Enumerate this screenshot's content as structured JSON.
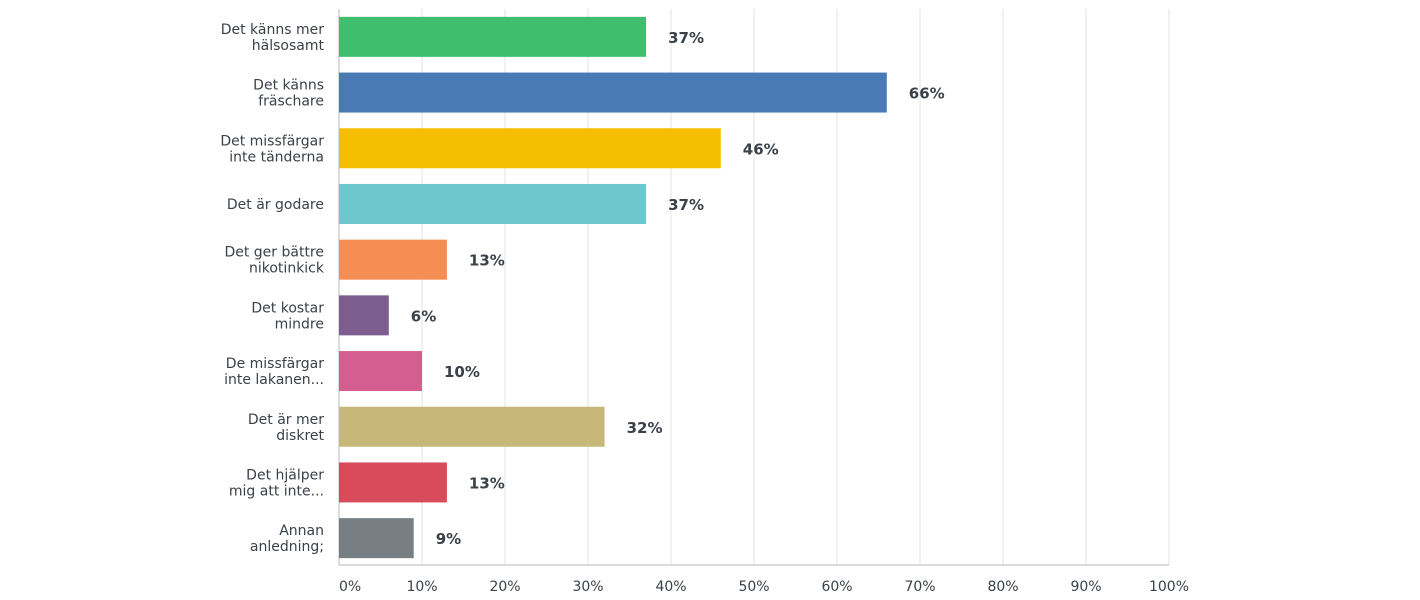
{
  "chart_data": {
    "type": "bar",
    "orientation": "horizontal",
    "title": "",
    "xlabel": "",
    "ylabel": "",
    "xlim": [
      0,
      100
    ],
    "grid": true,
    "legend": "none",
    "categories": [
      [
        "Det känns mer",
        "hälsosamt"
      ],
      [
        "Det känns",
        "fräschare"
      ],
      [
        "Det missfärgar",
        "inte tänderna"
      ],
      [
        "Det är godare"
      ],
      [
        "Det ger bättre",
        "nikotinkick"
      ],
      [
        "Det kostar",
        "mindre"
      ],
      [
        "De missfärgar",
        "inte lakanen..."
      ],
      [
        "Det är mer",
        "diskret"
      ],
      [
        "Det hjälper",
        "mig att inte..."
      ],
      [
        "Annan",
        "anledning;"
      ]
    ],
    "values": [
      37,
      66,
      46,
      37,
      13,
      6,
      10,
      32,
      13,
      9
    ],
    "value_labels": [
      "37%",
      "66%",
      "46%",
      "37%",
      "13%",
      "6%",
      "10%",
      "32%",
      "13%",
      "9%"
    ],
    "colors": [
      "#3fbe6e",
      "#4a7ab5",
      "#f5be00",
      "#6cc8cc",
      "#f68d52",
      "#7d5c90",
      "#d45e8f",
      "#c7b87a",
      "#d94b5b",
      "#777f84"
    ],
    "x_ticks": [
      0,
      10,
      20,
      30,
      40,
      50,
      60,
      70,
      80,
      90,
      100
    ],
    "x_tick_labels": [
      "0%",
      "10%",
      "20%",
      "30%",
      "40%",
      "50%",
      "60%",
      "70%",
      "80%",
      "90%",
      "100%"
    ]
  }
}
